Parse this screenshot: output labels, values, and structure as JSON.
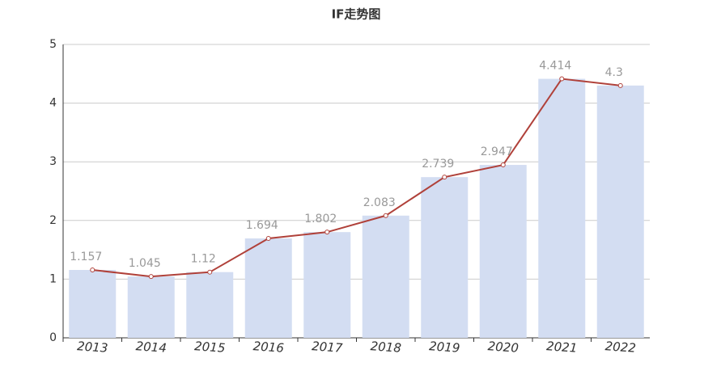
{
  "chart_data": {
    "type": "bar-line",
    "title": "IF走势图",
    "categories": [
      "2013",
      "2014",
      "2015",
      "2016",
      "2017",
      "2018",
      "2019",
      "2020",
      "2021",
      "2022"
    ],
    "series": [
      {
        "type": "bar",
        "color": "#d3ddf2",
        "values": [
          1.157,
          1.045,
          1.12,
          1.694,
          1.802,
          2.083,
          2.739,
          2.947,
          4.414,
          4.3
        ]
      },
      {
        "type": "line",
        "color": "#b0413a",
        "values": [
          1.157,
          1.045,
          1.12,
          1.694,
          1.802,
          2.083,
          2.739,
          2.947,
          4.414,
          4.3
        ]
      }
    ],
    "ylim": [
      0,
      5
    ],
    "yticks": [
      0,
      1,
      2,
      3,
      4,
      5
    ],
    "grid": true
  }
}
